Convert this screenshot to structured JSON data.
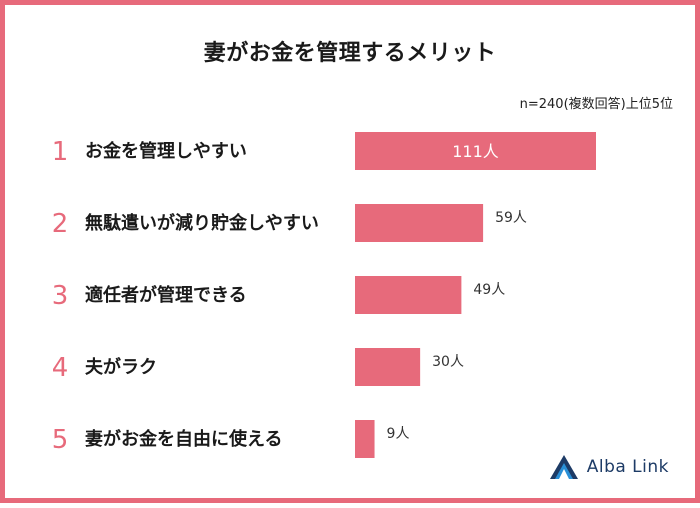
{
  "header": {
    "title": "妻がお金を管理するメリット",
    "subtitle": "n=240(複数回答)上位5位"
  },
  "chart_data": {
    "type": "bar",
    "orientation": "horizontal",
    "ranks": [
      "1",
      "2",
      "3",
      "4",
      "5"
    ],
    "categories": [
      "お金を管理しやすい",
      "無駄遣いが減り貯金しやすい",
      "適任者が管理できる",
      "夫がラク",
      "妻がお金を自由に使える"
    ],
    "values": [
      111,
      59,
      49,
      30,
      9
    ],
    "value_labels": [
      "111人",
      "59人",
      "49人",
      "30人",
      "9人"
    ],
    "bar_color": "#e76a7b",
    "grid": false
  },
  "logo": {
    "text": "Alba Link",
    "icon": "alba-link-logo-icon",
    "color": "#1d3b66",
    "accent": "#2a8fd6"
  }
}
